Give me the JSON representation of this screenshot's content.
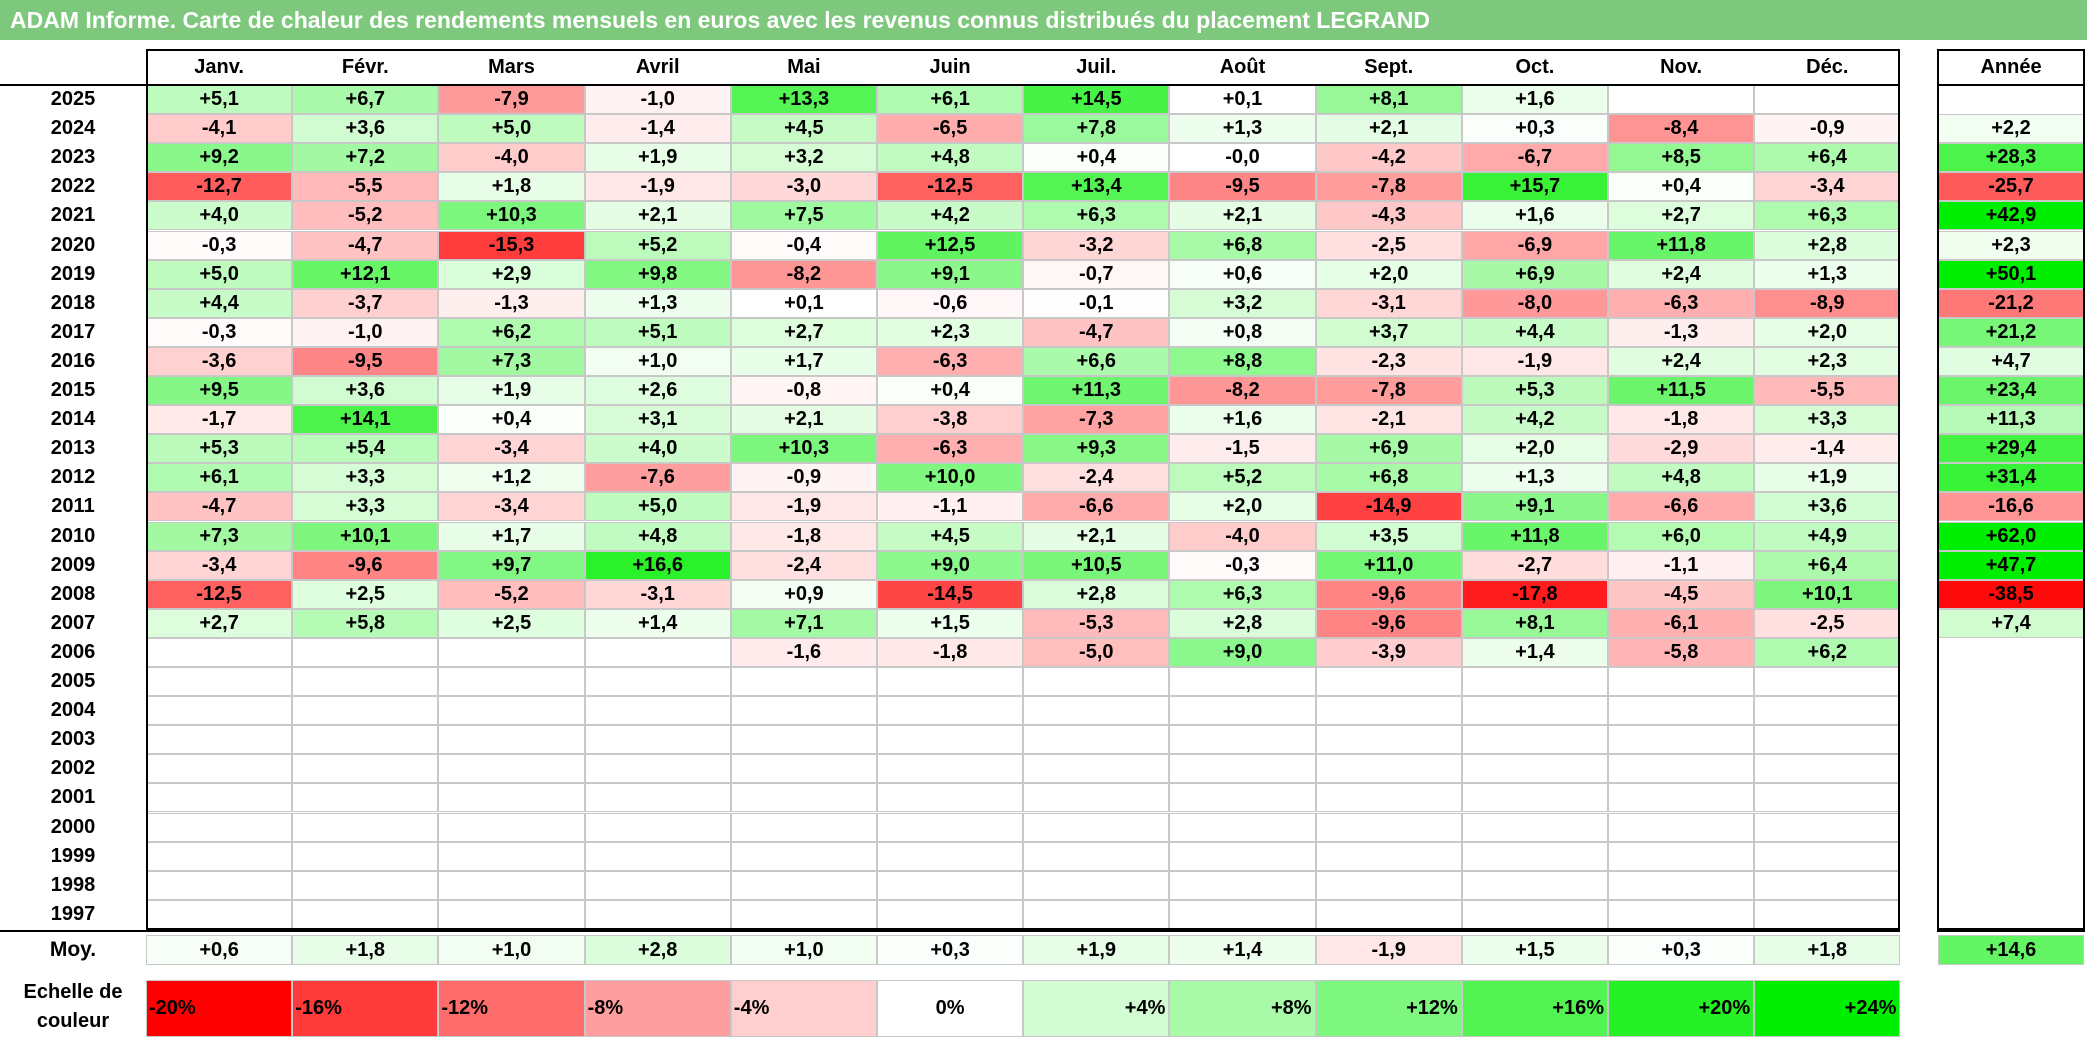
{
  "title": "ADAM Informe. Carte de chaleur des rendements mensuels en euros avec les revenus connus distribués du placement LEGRAND",
  "chart_data": {
    "type": "heatmap",
    "title": "ADAM Informe. Carte de chaleur des rendements mensuels en euros avec les revenus connus distribués du placement LEGRAND",
    "months": [
      "Janv.",
      "Févr.",
      "Mars",
      "Avril",
      "Mai",
      "Juin",
      "Juil.",
      "Août",
      "Sept.",
      "Oct.",
      "Nov.",
      "Déc."
    ],
    "annual_header": "Année",
    "rows": [
      {
        "year": "2025",
        "values": [
          "+5,1",
          "+6,7",
          "-7,9",
          "-1,0",
          "+13,3",
          "+6,1",
          "+14,5",
          "+0,1",
          "+8,1",
          "+1,6",
          "",
          ""
        ],
        "annual": ""
      },
      {
        "year": "2024",
        "values": [
          "-4,1",
          "+3,6",
          "+5,0",
          "-1,4",
          "+4,5",
          "-6,5",
          "+7,8",
          "+1,3",
          "+2,1",
          "+0,3",
          "-8,4",
          "-0,9"
        ],
        "annual": "+2,2"
      },
      {
        "year": "2023",
        "values": [
          "+9,2",
          "+7,2",
          "-4,0",
          "+1,9",
          "+3,2",
          "+4,8",
          "+0,4",
          "-0,0",
          "-4,2",
          "-6,7",
          "+8,5",
          "+6,4"
        ],
        "annual": "+28,3"
      },
      {
        "year": "2022",
        "values": [
          "-12,7",
          "-5,5",
          "+1,8",
          "-1,9",
          "-3,0",
          "-12,5",
          "+13,4",
          "-9,5",
          "-7,8",
          "+15,7",
          "+0,4",
          "-3,4"
        ],
        "annual": "-25,7"
      },
      {
        "year": "2021",
        "values": [
          "+4,0",
          "-5,2",
          "+10,3",
          "+2,1",
          "+7,5",
          "+4,2",
          "+6,3",
          "+2,1",
          "-4,3",
          "+1,6",
          "+2,7",
          "+6,3"
        ],
        "annual": "+42,9"
      },
      {
        "year": "2020",
        "values": [
          "-0,3",
          "-4,7",
          "-15,3",
          "+5,2",
          "-0,4",
          "+12,5",
          "-3,2",
          "+6,8",
          "-2,5",
          "-6,9",
          "+11,8",
          "+2,8"
        ],
        "annual": "+2,3"
      },
      {
        "year": "2019",
        "values": [
          "+5,0",
          "+12,1",
          "+2,9",
          "+9,8",
          "-8,2",
          "+9,1",
          "-0,7",
          "+0,6",
          "+2,0",
          "+6,9",
          "+2,4",
          "+1,3"
        ],
        "annual": "+50,1"
      },
      {
        "year": "2018",
        "values": [
          "+4,4",
          "-3,7",
          "-1,3",
          "+1,3",
          "+0,1",
          "-0,6",
          "-0,1",
          "+3,2",
          "-3,1",
          "-8,0",
          "-6,3",
          "-8,9"
        ],
        "annual": "-21,2"
      },
      {
        "year": "2017",
        "values": [
          "-0,3",
          "-1,0",
          "+6,2",
          "+5,1",
          "+2,7",
          "+2,3",
          "-4,7",
          "+0,8",
          "+3,7",
          "+4,4",
          "-1,3",
          "+2,0"
        ],
        "annual": "+21,2"
      },
      {
        "year": "2016",
        "values": [
          "-3,6",
          "-9,5",
          "+7,3",
          "+1,0",
          "+1,7",
          "-6,3",
          "+6,6",
          "+8,8",
          "-2,3",
          "-1,9",
          "+2,4",
          "+2,3"
        ],
        "annual": "+4,7"
      },
      {
        "year": "2015",
        "values": [
          "+9,5",
          "+3,6",
          "+1,9",
          "+2,6",
          "-0,8",
          "+0,4",
          "+11,3",
          "-8,2",
          "-7,8",
          "+5,3",
          "+11,5",
          "-5,5"
        ],
        "annual": "+23,4"
      },
      {
        "year": "2014",
        "values": [
          "-1,7",
          "+14,1",
          "+0,4",
          "+3,1",
          "+2,1",
          "-3,8",
          "-7,3",
          "+1,6",
          "-2,1",
          "+4,2",
          "-1,8",
          "+3,3"
        ],
        "annual": "+11,3"
      },
      {
        "year": "2013",
        "values": [
          "+5,3",
          "+5,4",
          "-3,4",
          "+4,0",
          "+10,3",
          "-6,3",
          "+9,3",
          "-1,5",
          "+6,9",
          "+2,0",
          "-2,9",
          "-1,4"
        ],
        "annual": "+29,4"
      },
      {
        "year": "2012",
        "values": [
          "+6,1",
          "+3,3",
          "+1,2",
          "-7,6",
          "-0,9",
          "+10,0",
          "-2,4",
          "+5,2",
          "+6,8",
          "+1,3",
          "+4,8",
          "+1,9"
        ],
        "annual": "+31,4"
      },
      {
        "year": "2011",
        "values": [
          "-4,7",
          "+3,3",
          "-3,4",
          "+5,0",
          "-1,9",
          "-1,1",
          "-6,6",
          "+2,0",
          "-14,9",
          "+9,1",
          "-6,6",
          "+3,6"
        ],
        "annual": "-16,6"
      },
      {
        "year": "2010",
        "values": [
          "+7,3",
          "+10,1",
          "+1,7",
          "+4,8",
          "-1,8",
          "+4,5",
          "+2,1",
          "-4,0",
          "+3,5",
          "+11,8",
          "+6,0",
          "+4,9"
        ],
        "annual": "+62,0"
      },
      {
        "year": "2009",
        "values": [
          "-3,4",
          "-9,6",
          "+9,7",
          "+16,6",
          "-2,4",
          "+9,0",
          "+10,5",
          "-0,3",
          "+11,0",
          "-2,7",
          "-1,1",
          "+6,4"
        ],
        "annual": "+47,7"
      },
      {
        "year": "2008",
        "values": [
          "-12,5",
          "+2,5",
          "-5,2",
          "-3,1",
          "+0,9",
          "-14,5",
          "+2,8",
          "+6,3",
          "-9,6",
          "-17,8",
          "-4,5",
          "+10,1"
        ],
        "annual": "-38,5"
      },
      {
        "year": "2007",
        "values": [
          "+2,7",
          "+5,8",
          "+2,5",
          "+1,4",
          "+7,1",
          "+1,5",
          "-5,3",
          "+2,8",
          "-9,6",
          "+8,1",
          "-6,1",
          "-2,5"
        ],
        "annual": "+7,4"
      },
      {
        "year": "2006",
        "values": [
          "",
          "",
          "",
          "",
          "-1,6",
          "-1,8",
          "-5,0",
          "+9,0",
          "-3,9",
          "+1,4",
          "-5,8",
          "+6,2"
        ],
        "annual": ""
      },
      {
        "year": "2005",
        "values": [
          "",
          "",
          "",
          "",
          "",
          "",
          "",
          "",
          "",
          "",
          "",
          ""
        ],
        "annual": ""
      },
      {
        "year": "2004",
        "values": [
          "",
          "",
          "",
          "",
          "",
          "",
          "",
          "",
          "",
          "",
          "",
          ""
        ],
        "annual": ""
      },
      {
        "year": "2003",
        "values": [
          "",
          "",
          "",
          "",
          "",
          "",
          "",
          "",
          "",
          "",
          "",
          ""
        ],
        "annual": ""
      },
      {
        "year": "2002",
        "values": [
          "",
          "",
          "",
          "",
          "",
          "",
          "",
          "",
          "",
          "",
          "",
          ""
        ],
        "annual": ""
      },
      {
        "year": "2001",
        "values": [
          "",
          "",
          "",
          "",
          "",
          "",
          "",
          "",
          "",
          "",
          "",
          ""
        ],
        "annual": ""
      },
      {
        "year": "2000",
        "values": [
          "",
          "",
          "",
          "",
          "",
          "",
          "",
          "",
          "",
          "",
          "",
          ""
        ],
        "annual": ""
      },
      {
        "year": "1999",
        "values": [
          "",
          "",
          "",
          "",
          "",
          "",
          "",
          "",
          "",
          "",
          "",
          ""
        ],
        "annual": ""
      },
      {
        "year": "1998",
        "values": [
          "",
          "",
          "",
          "",
          "",
          "",
          "",
          "",
          "",
          "",
          "",
          ""
        ],
        "annual": ""
      },
      {
        "year": "1997",
        "values": [
          "",
          "",
          "",
          "",
          "",
          "",
          "",
          "",
          "",
          "",
          "",
          ""
        ],
        "annual": ""
      }
    ],
    "average": {
      "label": "Moy.",
      "values": [
        "+0,6",
        "+1,8",
        "+1,0",
        "+2,8",
        "+1,0",
        "+0,3",
        "+1,9",
        "+1,4",
        "-1,9",
        "+1,5",
        "+0,3",
        "+1,8"
      ],
      "annual": "+14,6"
    },
    "color_scale": {
      "label": "Echelle de couleur",
      "stops": [
        "-20%",
        "-16%",
        "-12%",
        "-8%",
        "-4%",
        "0%",
        "+4%",
        "+8%",
        "+12%",
        "+16%",
        "+20%",
        "+24%"
      ],
      "colors": [
        "#ff0000",
        "#ff3a3a",
        "#ff6c6c",
        "#ff9e9e",
        "#ffcfcf",
        "#ffffff",
        "#d4fcd4",
        "#a8f9a8",
        "#7df77d",
        "#52f452",
        "#26f126",
        "#00ee00"
      ]
    }
  }
}
